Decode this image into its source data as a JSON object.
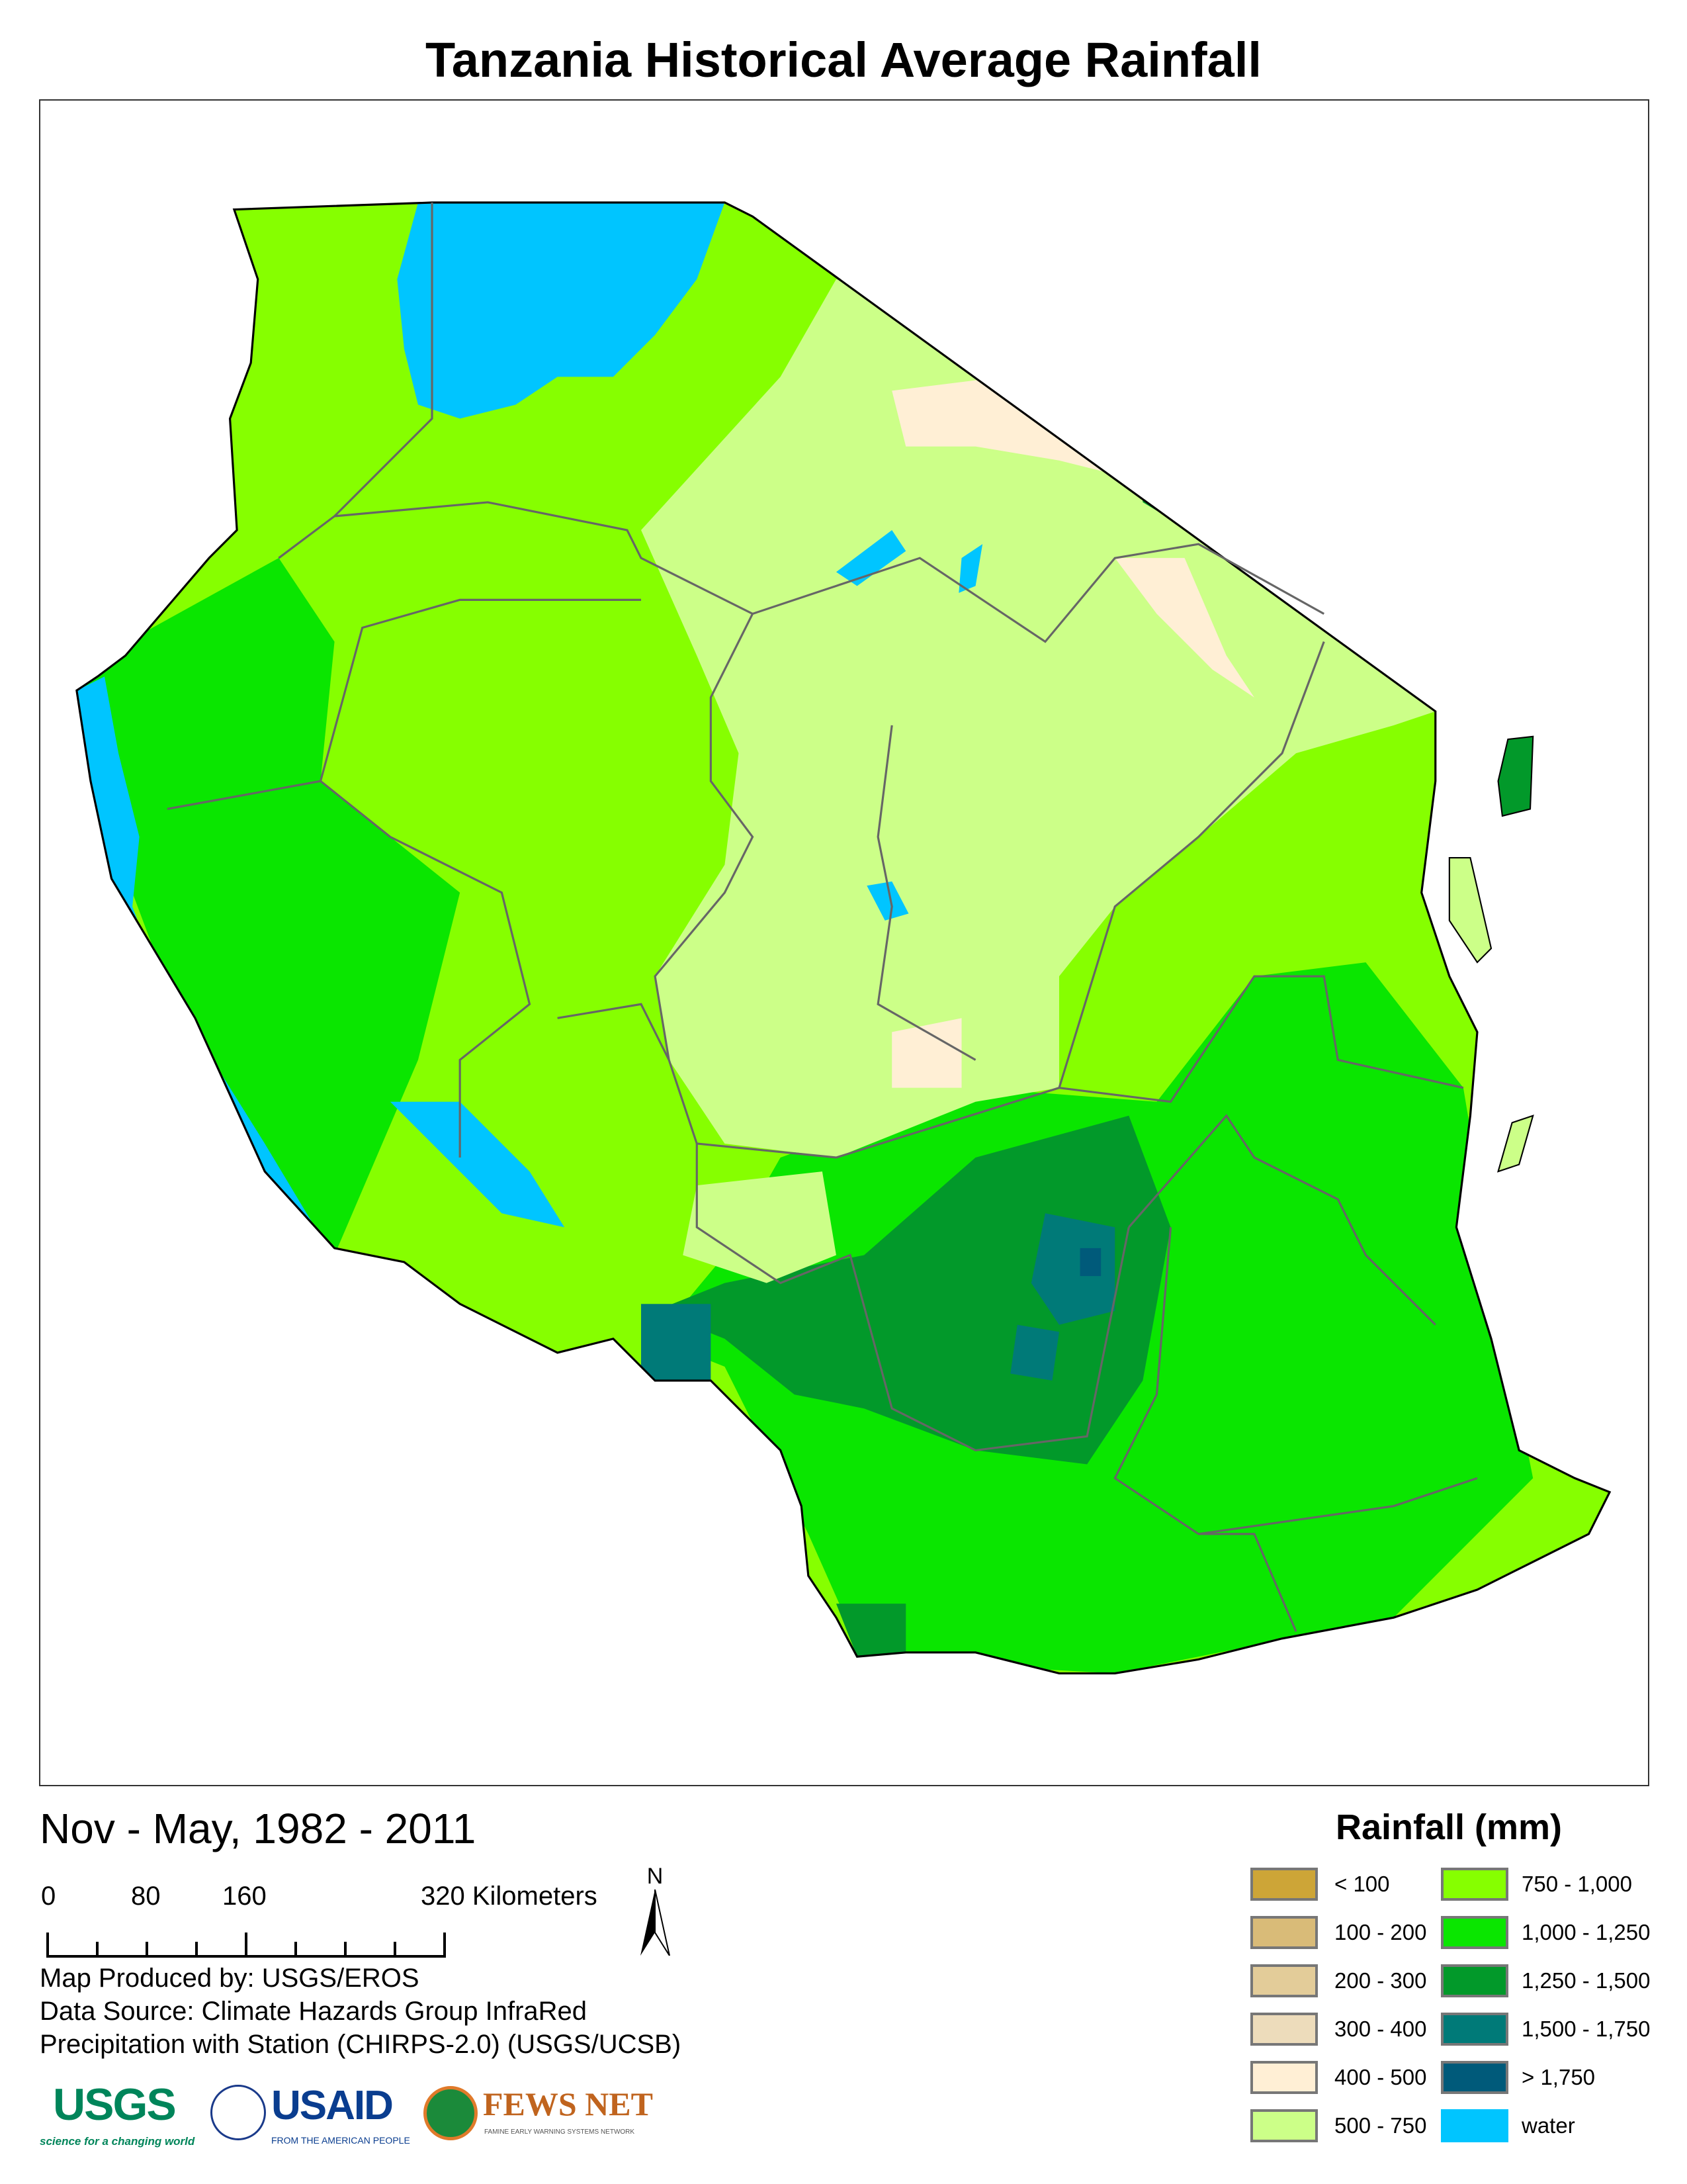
{
  "title": "Tanzania Historical Average Rainfall",
  "subtitle": "Nov - May, 1982 - 2011",
  "scale": {
    "labels": [
      "0",
      "80",
      "160",
      "320 Kilometers"
    ]
  },
  "north_arrow": {
    "label": "N"
  },
  "credits": [
    "Map Produced by: USGS/EROS",
    "Data Source: Climate Hazards Group InfraRed",
    "Precipitation with Station (CHIRPS-2.0) (USGS/UCSB)"
  ],
  "legend": {
    "title": "Rainfall (mm)",
    "items": [
      {
        "label": "< 100",
        "color": "#CDA537"
      },
      {
        "label": "100 - 200",
        "color": "#D9BB78"
      },
      {
        "label": "200 - 300",
        "color": "#E3CC99"
      },
      {
        "label": "300 - 400",
        "color": "#EDDCBB"
      },
      {
        "label": "400 - 500",
        "color": "#FFEFD5"
      },
      {
        "label": "500 - 750",
        "color": "#CCFF88"
      },
      {
        "label": "750 - 1,000",
        "color": "#86FF00"
      },
      {
        "label": "1,000 - 1,250",
        "color": "#0AE600"
      },
      {
        "label": "1,250 - 1,500",
        "color": "#02992A"
      },
      {
        "label": "1,500 - 1,750",
        "color": "#007A78"
      },
      {
        "label": "> 1,750",
        "color": "#005A7A"
      },
      {
        "label": "water",
        "color": "#00C5FF"
      }
    ]
  },
  "logos": {
    "usgs": {
      "name": "USGS",
      "tagline": "science for a changing world"
    },
    "usaid": {
      "name": "USAID",
      "tagline": "FROM THE AMERICAN PEOPLE"
    },
    "fewsnet": {
      "name": "FEWS NET",
      "tagline": "FAMINE EARLY WARNING SYSTEMS NETWORK"
    }
  }
}
